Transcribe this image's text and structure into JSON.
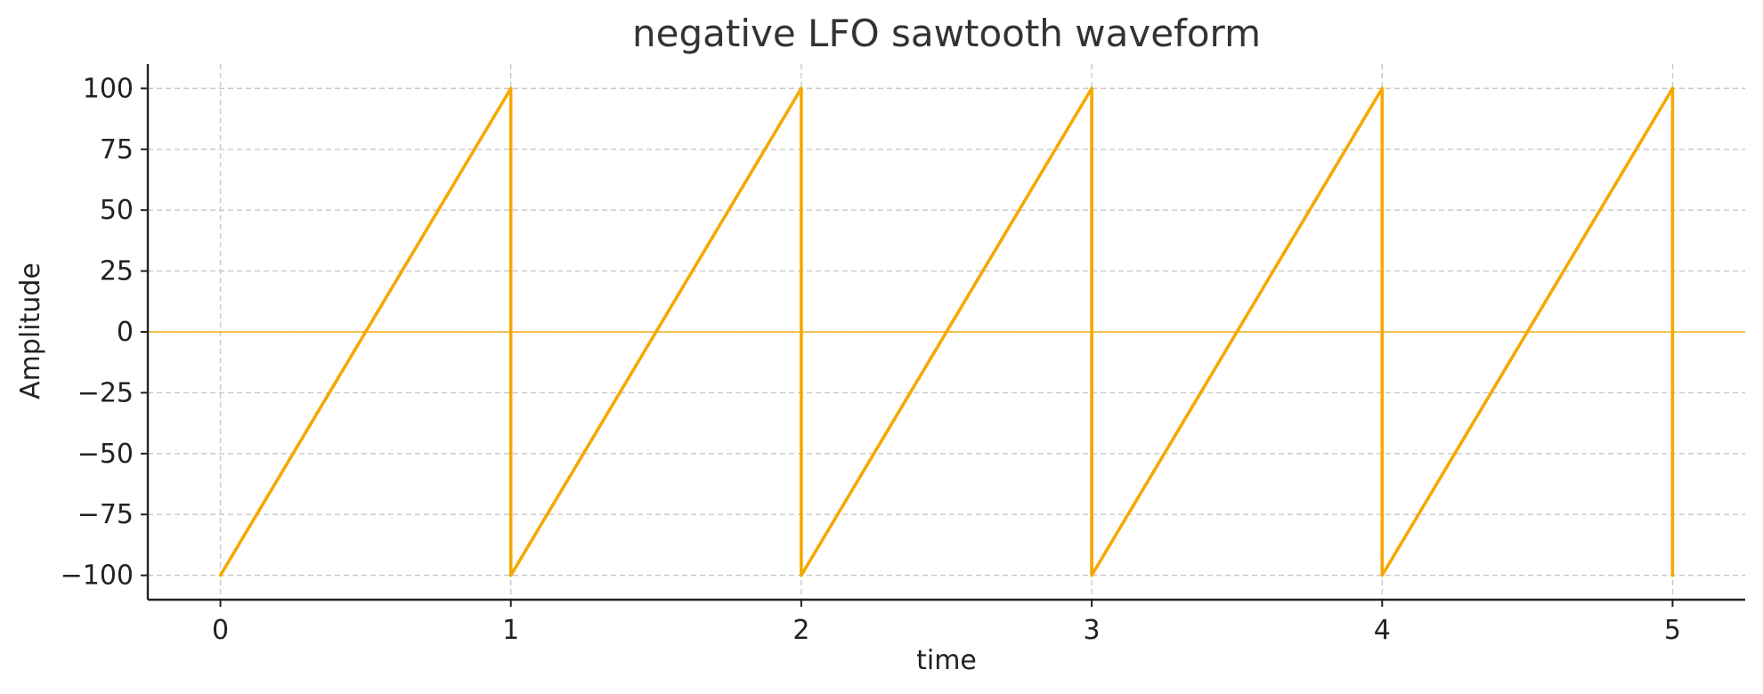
{
  "chart_data": {
    "type": "line",
    "title": "negative LFO sawtooth waveform",
    "xlabel": "time",
    "ylabel": "Amplitude",
    "xlim": [
      -0.25,
      5.25
    ],
    "ylim": [
      -110,
      110
    ],
    "x_ticks": [
      0,
      1,
      2,
      3,
      4,
      5
    ],
    "x_tick_labels": [
      "0",
      "1",
      "2",
      "3",
      "4",
      "5"
    ],
    "y_ticks": [
      -100,
      -75,
      -50,
      -25,
      0,
      25,
      50,
      75,
      100
    ],
    "y_tick_labels": [
      "−100",
      "−75",
      "−50",
      "−25",
      "0",
      "25",
      "50",
      "75",
      "100"
    ],
    "grid": true,
    "reference_line": {
      "y": 0,
      "color": "#f5b21a"
    },
    "series": [
      {
        "color": "#f5a800",
        "points": [
          [
            0,
            -100
          ],
          [
            1,
            100
          ],
          [
            1,
            -100
          ],
          [
            2,
            100
          ],
          [
            2,
            -100
          ],
          [
            3,
            100
          ],
          [
            3,
            -100
          ],
          [
            4,
            100
          ],
          [
            4,
            -100
          ],
          [
            5,
            100
          ],
          [
            5,
            -100
          ]
        ]
      }
    ]
  }
}
